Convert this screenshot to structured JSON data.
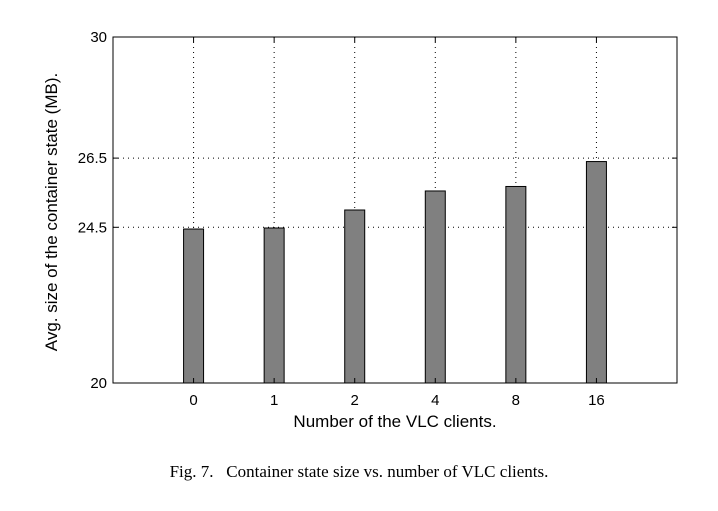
{
  "chart_data": {
    "type": "bar",
    "categories": [
      "0",
      "1",
      "2",
      "4",
      "8",
      "16"
    ],
    "values": [
      24.45,
      24.48,
      25.0,
      25.55,
      25.68,
      26.4
    ],
    "xlabel": "Number of the VLC clients.",
    "ylabel": "Avg. size of the container state (MB).",
    "ylim": [
      20,
      30
    ],
    "yticks": [
      20,
      24.5,
      26.5,
      30
    ],
    "ytick_labels": [
      "20",
      "24.5",
      "26.5",
      "30"
    ],
    "grid": true,
    "bar_color": "#808080"
  },
  "caption": "Fig. 7.   Container state size vs. number of VLC clients."
}
